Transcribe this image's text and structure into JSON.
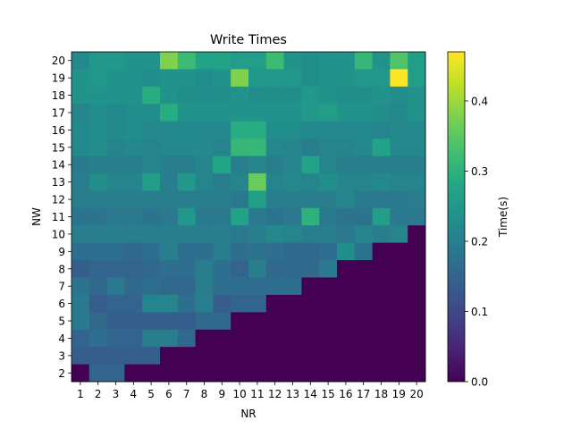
{
  "chart_data": {
    "type": "heatmap",
    "title": "Write Times",
    "xlabel": "NR",
    "ylabel": "NW",
    "colorbar_label": "Time(s)",
    "colormap": "viridis",
    "x_categories": [
      1,
      2,
      3,
      4,
      5,
      6,
      7,
      8,
      9,
      10,
      11,
      12,
      13,
      14,
      15,
      16,
      17,
      18,
      19,
      20
    ],
    "y_categories": [
      2,
      3,
      4,
      5,
      6,
      7,
      8,
      9,
      10,
      11,
      12,
      13,
      14,
      15,
      16,
      17,
      18,
      19,
      20
    ],
    "color_range": [
      0.0,
      0.47
    ],
    "colorbar_ticks": [
      0.0,
      0.1,
      0.2,
      0.3,
      0.4
    ],
    "colorbar_tick_labels": [
      "0.0",
      "0.1",
      "0.2",
      "0.3",
      "0.4"
    ],
    "grid": false,
    "values": [
      [
        0.22,
        0.25,
        0.25,
        0.24,
        0.24,
        0.38,
        0.32,
        0.27,
        0.27,
        0.26,
        0.26,
        0.32,
        0.24,
        0.23,
        0.24,
        0.24,
        0.31,
        0.24,
        0.34,
        0.26
      ],
      [
        0.24,
        0.25,
        0.24,
        0.24,
        0.23,
        0.24,
        0.24,
        0.23,
        0.24,
        0.38,
        0.25,
        0.25,
        0.25,
        0.23,
        0.24,
        0.24,
        0.25,
        0.25,
        0.47,
        0.26
      ],
      [
        0.24,
        0.24,
        0.24,
        0.24,
        0.29,
        0.24,
        0.23,
        0.23,
        0.23,
        0.24,
        0.23,
        0.23,
        0.23,
        0.25,
        0.24,
        0.23,
        0.23,
        0.24,
        0.23,
        0.24
      ],
      [
        0.21,
        0.23,
        0.22,
        0.23,
        0.23,
        0.29,
        0.24,
        0.24,
        0.24,
        0.24,
        0.24,
        0.24,
        0.24,
        0.25,
        0.26,
        0.24,
        0.24,
        0.23,
        0.22,
        0.24
      ],
      [
        0.22,
        0.23,
        0.22,
        0.23,
        0.22,
        0.22,
        0.22,
        0.22,
        0.22,
        0.29,
        0.29,
        0.23,
        0.23,
        0.22,
        0.22,
        0.22,
        0.22,
        0.21,
        0.22,
        0.22
      ],
      [
        0.22,
        0.23,
        0.21,
        0.22,
        0.21,
        0.22,
        0.22,
        0.22,
        0.21,
        0.31,
        0.31,
        0.22,
        0.21,
        0.2,
        0.21,
        0.21,
        0.22,
        0.27,
        0.22,
        0.22
      ],
      [
        0.19,
        0.2,
        0.2,
        0.2,
        0.21,
        0.2,
        0.2,
        0.21,
        0.28,
        0.2,
        0.21,
        0.2,
        0.21,
        0.27,
        0.21,
        0.2,
        0.2,
        0.2,
        0.2,
        0.2
      ],
      [
        0.2,
        0.23,
        0.21,
        0.21,
        0.26,
        0.2,
        0.25,
        0.21,
        0.2,
        0.21,
        0.36,
        0.21,
        0.22,
        0.21,
        0.23,
        0.21,
        0.21,
        0.22,
        0.21,
        0.21
      ],
      [
        0.2,
        0.2,
        0.2,
        0.2,
        0.2,
        0.2,
        0.2,
        0.2,
        0.2,
        0.19,
        0.26,
        0.2,
        0.2,
        0.2,
        0.2,
        0.21,
        0.19,
        0.19,
        0.19,
        0.2
      ],
      [
        0.18,
        0.18,
        0.19,
        0.19,
        0.18,
        0.19,
        0.25,
        0.19,
        0.19,
        0.27,
        0.19,
        0.18,
        0.19,
        0.3,
        0.19,
        0.18,
        0.18,
        0.26,
        0.19,
        0.19
      ],
      [
        0.2,
        0.2,
        0.2,
        0.2,
        0.2,
        0.2,
        0.2,
        0.2,
        0.2,
        0.19,
        0.2,
        0.22,
        0.21,
        0.2,
        0.2,
        0.19,
        0.21,
        0.2,
        0.21,
        0.0
      ],
      [
        0.17,
        0.17,
        0.17,
        0.16,
        0.17,
        0.2,
        0.17,
        0.17,
        0.2,
        0.17,
        0.18,
        0.17,
        0.16,
        0.16,
        0.17,
        0.23,
        0.18,
        0.0,
        0.0,
        0.0
      ],
      [
        0.14,
        0.15,
        0.15,
        0.15,
        0.16,
        0.17,
        0.17,
        0.2,
        0.17,
        0.15,
        0.2,
        0.16,
        0.16,
        0.16,
        0.19,
        0.0,
        0.0,
        0.0,
        0.0,
        0.0
      ],
      [
        0.18,
        0.16,
        0.19,
        0.16,
        0.17,
        0.16,
        0.16,
        0.2,
        0.17,
        0.17,
        0.17,
        0.17,
        0.17,
        0.0,
        0.0,
        0.0,
        0.0,
        0.0,
        0.0,
        0.0
      ],
      [
        0.19,
        0.14,
        0.15,
        0.15,
        0.21,
        0.21,
        0.17,
        0.2,
        0.14,
        0.15,
        0.15,
        0.0,
        0.0,
        0.0,
        0.0,
        0.0,
        0.0,
        0.0,
        0.0,
        0.0
      ],
      [
        0.19,
        0.16,
        0.14,
        0.14,
        0.14,
        0.14,
        0.14,
        0.16,
        0.16,
        0.0,
        0.0,
        0.0,
        0.0,
        0.0,
        0.0,
        0.0,
        0.0,
        0.0,
        0.0,
        0.0
      ],
      [
        0.15,
        0.17,
        0.15,
        0.15,
        0.2,
        0.2,
        0.16,
        0.0,
        0.0,
        0.0,
        0.0,
        0.0,
        0.0,
        0.0,
        0.0,
        0.0,
        0.0,
        0.0,
        0.0,
        0.0
      ],
      [
        0.14,
        0.14,
        0.14,
        0.14,
        0.14,
        0.0,
        0.0,
        0.0,
        0.0,
        0.0,
        0.0,
        0.0,
        0.0,
        0.0,
        0.0,
        0.0,
        0.0,
        0.0,
        0.0,
        0.0
      ],
      [
        0.0,
        0.15,
        0.15,
        0.0,
        0.0,
        0.0,
        0.0,
        0.0,
        0.0,
        0.0,
        0.0,
        0.0,
        0.0,
        0.0,
        0.0,
        0.0,
        0.0,
        0.0,
        0.0,
        0.0
      ]
    ]
  }
}
